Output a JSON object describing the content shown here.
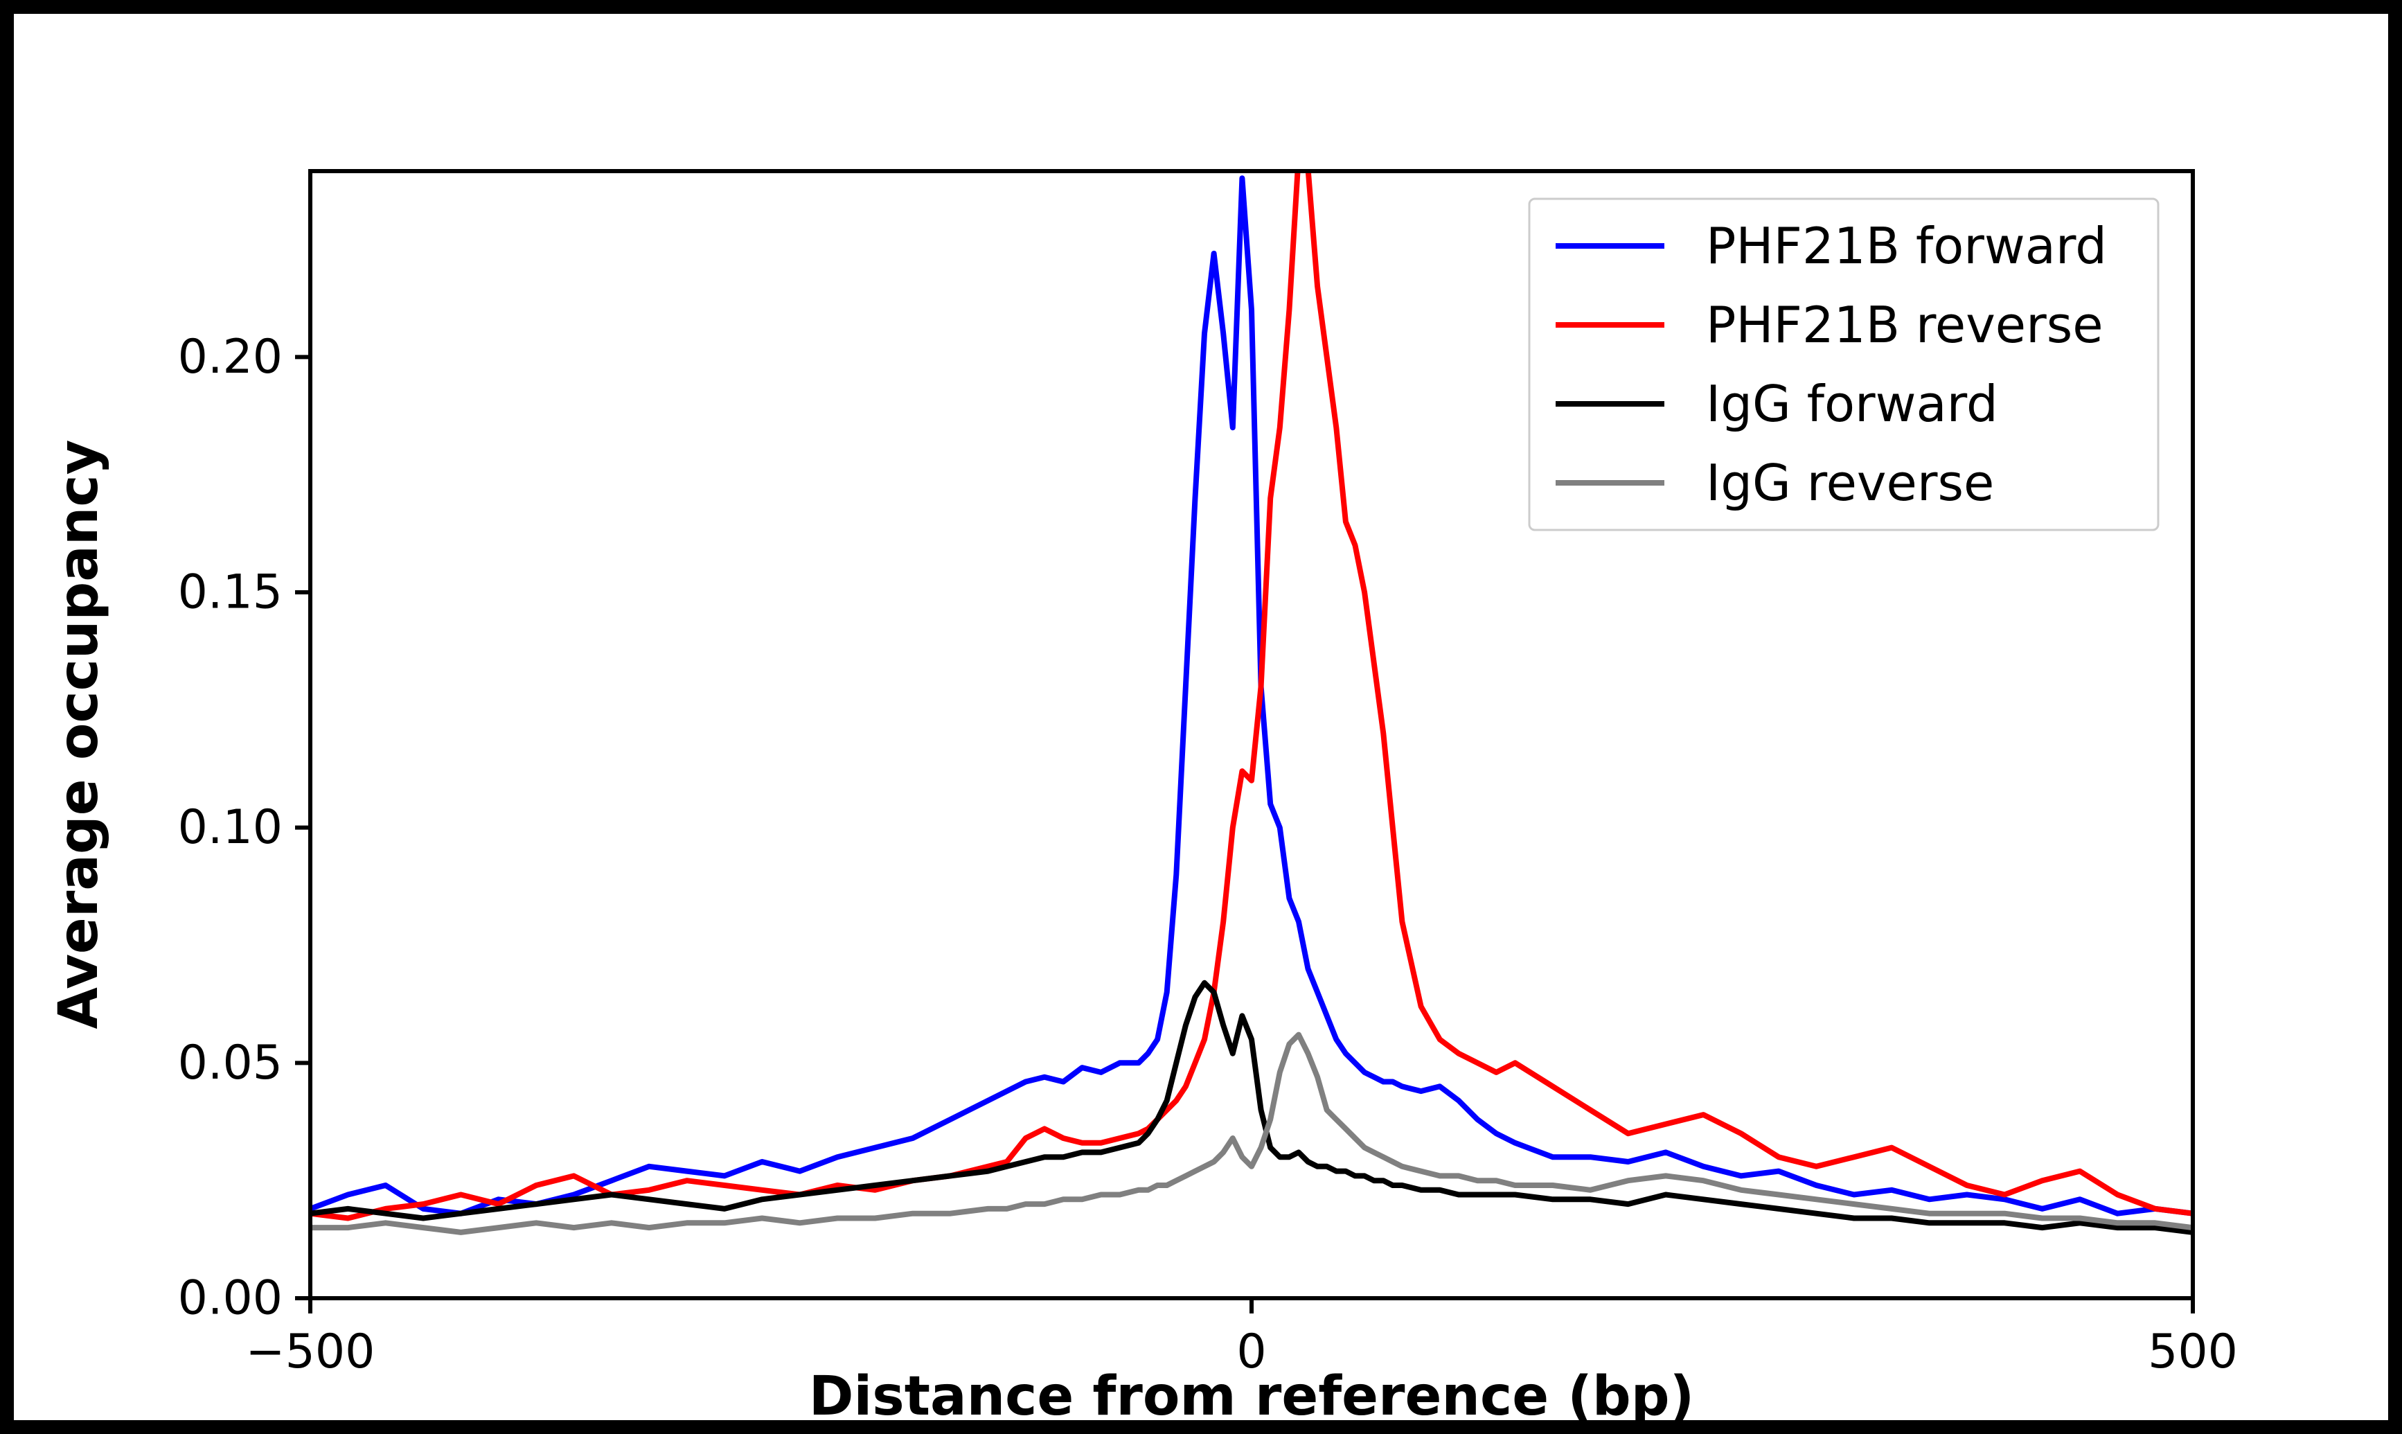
{
  "figure": {
    "frame_color": "#000000",
    "canvas_color": "#ffffff"
  },
  "chart_data": {
    "type": "line",
    "title": "",
    "xlabel": "Distance from reference (bp)",
    "ylabel": "Average occupancy",
    "xlim": [
      -500,
      500
    ],
    "ylim": [
      0,
      0.2395
    ],
    "grid": false,
    "legend_position": "upper right",
    "legend_entries": [
      "PHF21B forward",
      "PHF21B reverse",
      "IgG forward",
      "IgG reverse"
    ],
    "xticks": [
      {
        "value": -500,
        "label": "−500"
      },
      {
        "value": 0,
        "label": "0"
      },
      {
        "value": 500,
        "label": "500"
      }
    ],
    "yticks": [
      {
        "value": 0.0,
        "label": "0.00"
      },
      {
        "value": 0.05,
        "label": "0.05"
      },
      {
        "value": 0.1,
        "label": "0.10"
      },
      {
        "value": 0.15,
        "label": "0.15"
      },
      {
        "value": 0.2,
        "label": "0.20"
      }
    ],
    "x": [
      -500,
      -480,
      -460,
      -440,
      -420,
      -400,
      -380,
      -360,
      -340,
      -320,
      -300,
      -280,
      -260,
      -240,
      -220,
      -200,
      -180,
      -160,
      -140,
      -130,
      -120,
      -110,
      -100,
      -90,
      -80,
      -70,
      -60,
      -55,
      -50,
      -45,
      -40,
      -35,
      -30,
      -25,
      -20,
      -15,
      -10,
      -5,
      0,
      5,
      10,
      15,
      20,
      25,
      30,
      35,
      40,
      45,
      50,
      55,
      60,
      65,
      70,
      75,
      80,
      90,
      100,
      110,
      120,
      130,
      140,
      160,
      180,
      200,
      220,
      240,
      260,
      280,
      300,
      320,
      340,
      360,
      380,
      400,
      420,
      440,
      460,
      480,
      500
    ],
    "series": [
      {
        "name": "PHF21B forward",
        "color": "#0000ff",
        "values": [
          0.019,
          0.022,
          0.024,
          0.019,
          0.018,
          0.021,
          0.02,
          0.022,
          0.025,
          0.028,
          0.027,
          0.026,
          0.029,
          0.027,
          0.03,
          0.032,
          0.034,
          0.038,
          0.042,
          0.044,
          0.046,
          0.047,
          0.046,
          0.049,
          0.048,
          0.05,
          0.05,
          0.052,
          0.055,
          0.065,
          0.09,
          0.13,
          0.17,
          0.205,
          0.222,
          0.205,
          0.185,
          0.238,
          0.21,
          0.13,
          0.105,
          0.1,
          0.085,
          0.08,
          0.07,
          0.065,
          0.06,
          0.055,
          0.052,
          0.05,
          0.048,
          0.047,
          0.046,
          0.046,
          0.045,
          0.044,
          0.045,
          0.042,
          0.038,
          0.035,
          0.033,
          0.03,
          0.03,
          0.029,
          0.031,
          0.028,
          0.026,
          0.027,
          0.024,
          0.022,
          0.023,
          0.021,
          0.022,
          0.021,
          0.019,
          0.021,
          0.018,
          0.019,
          0.018
        ]
      },
      {
        "name": "PHF21B reverse",
        "color": "#ff0000",
        "values": [
          0.018,
          0.017,
          0.019,
          0.02,
          0.022,
          0.02,
          0.024,
          0.026,
          0.022,
          0.023,
          0.025,
          0.024,
          0.023,
          0.022,
          0.024,
          0.023,
          0.025,
          0.026,
          0.028,
          0.029,
          0.034,
          0.036,
          0.034,
          0.033,
          0.033,
          0.034,
          0.035,
          0.036,
          0.038,
          0.04,
          0.042,
          0.045,
          0.05,
          0.055,
          0.065,
          0.08,
          0.1,
          0.112,
          0.11,
          0.13,
          0.17,
          0.185,
          0.21,
          0.243,
          0.24,
          0.215,
          0.2,
          0.185,
          0.165,
          0.16,
          0.15,
          0.135,
          0.12,
          0.1,
          0.08,
          0.062,
          0.055,
          0.052,
          0.05,
          0.048,
          0.05,
          0.045,
          0.04,
          0.035,
          0.037,
          0.039,
          0.035,
          0.03,
          0.028,
          0.03,
          0.032,
          0.028,
          0.024,
          0.022,
          0.025,
          0.027,
          0.022,
          0.019,
          0.018
        ]
      },
      {
        "name": "IgG forward",
        "color": "#000000",
        "values": [
          0.018,
          0.019,
          0.018,
          0.017,
          0.018,
          0.019,
          0.02,
          0.021,
          0.022,
          0.021,
          0.02,
          0.019,
          0.021,
          0.022,
          0.023,
          0.024,
          0.025,
          0.026,
          0.027,
          0.028,
          0.029,
          0.03,
          0.03,
          0.031,
          0.031,
          0.032,
          0.033,
          0.035,
          0.038,
          0.042,
          0.05,
          0.058,
          0.064,
          0.067,
          0.065,
          0.058,
          0.052,
          0.06,
          0.055,
          0.04,
          0.032,
          0.03,
          0.03,
          0.031,
          0.029,
          0.028,
          0.028,
          0.027,
          0.027,
          0.026,
          0.026,
          0.025,
          0.025,
          0.024,
          0.024,
          0.023,
          0.023,
          0.022,
          0.022,
          0.022,
          0.022,
          0.021,
          0.021,
          0.02,
          0.022,
          0.021,
          0.02,
          0.019,
          0.018,
          0.017,
          0.017,
          0.016,
          0.016,
          0.016,
          0.015,
          0.016,
          0.015,
          0.015,
          0.014
        ]
      },
      {
        "name": "IgG reverse",
        "color": "#808080",
        "values": [
          0.015,
          0.015,
          0.016,
          0.015,
          0.014,
          0.015,
          0.016,
          0.015,
          0.016,
          0.015,
          0.016,
          0.016,
          0.017,
          0.016,
          0.017,
          0.017,
          0.018,
          0.018,
          0.019,
          0.019,
          0.02,
          0.02,
          0.021,
          0.021,
          0.022,
          0.022,
          0.023,
          0.023,
          0.024,
          0.024,
          0.025,
          0.026,
          0.027,
          0.028,
          0.029,
          0.031,
          0.034,
          0.03,
          0.028,
          0.032,
          0.038,
          0.048,
          0.054,
          0.056,
          0.052,
          0.047,
          0.04,
          0.038,
          0.036,
          0.034,
          0.032,
          0.031,
          0.03,
          0.029,
          0.028,
          0.027,
          0.026,
          0.026,
          0.025,
          0.025,
          0.024,
          0.024,
          0.023,
          0.025,
          0.026,
          0.025,
          0.023,
          0.022,
          0.021,
          0.02,
          0.019,
          0.018,
          0.018,
          0.018,
          0.017,
          0.017,
          0.016,
          0.016,
          0.015
        ]
      }
    ]
  }
}
